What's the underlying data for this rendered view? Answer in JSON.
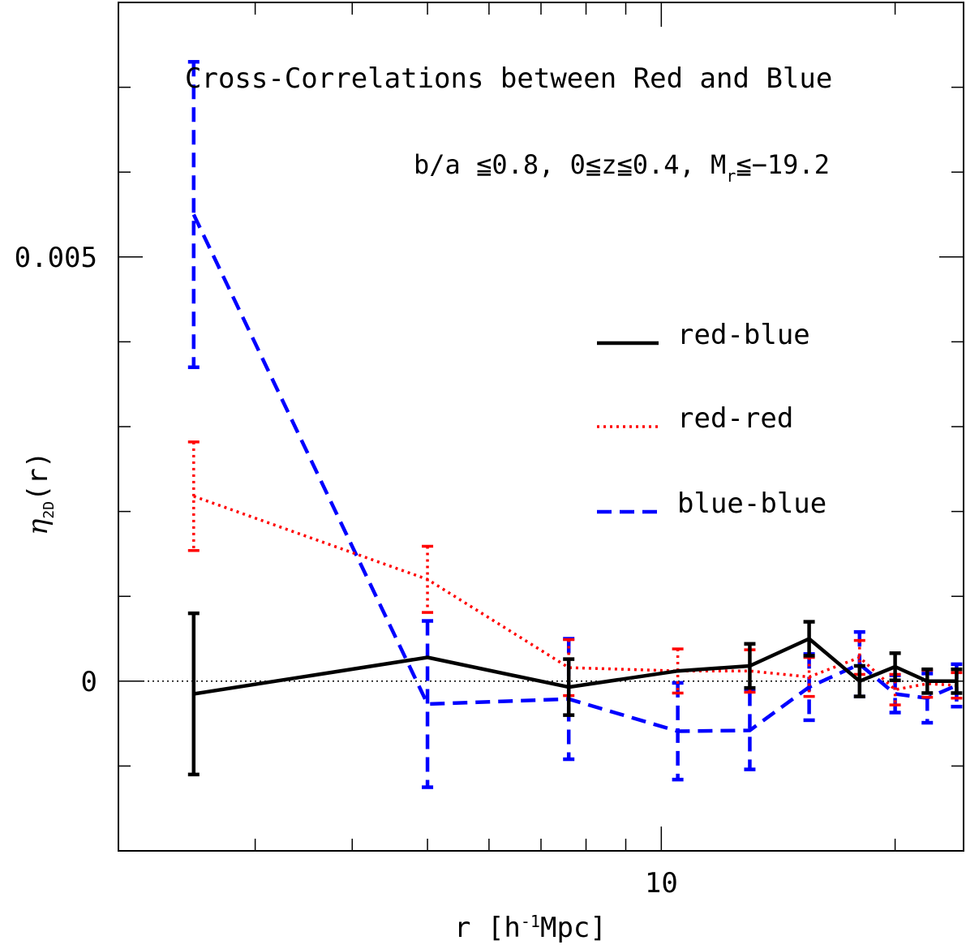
{
  "chart_data": {
    "type": "line",
    "title": "Cross-Correlations between Red and Blue",
    "subtitle": {
      "lead": "b/a ≦0.8, 0≦z≦0.4, M",
      "sub": "r",
      "tail": "≦−19.2"
    },
    "xlabel": {
      "lead": "r [h",
      "sup": "-1",
      "tail": "Mpc]"
    },
    "ylabel": {
      "symbol": "η",
      "sub": "2D",
      "tail": "(r)"
    },
    "x_scale": "log",
    "xlim": [
      2.0,
      24.5
    ],
    "ylim": [
      -0.002,
      0.008
    ],
    "x_tick_labels": [
      {
        "value": 10,
        "label": "10"
      }
    ],
    "y_tick_labels": [
      {
        "value": 0,
        "label": "0"
      },
      {
        "value": 0.005,
        "label": "0.005"
      }
    ],
    "zero_line": true,
    "legend": {
      "placement": "right",
      "entries": [
        {
          "label": "red-blue",
          "series": 0
        },
        {
          "label": "red-red",
          "series": 1
        },
        {
          "label": "blue-blue",
          "series": 2
        }
      ]
    },
    "x": [
      2.5,
      5.0,
      7.6,
      10.5,
      13.0,
      15.5,
      18.0,
      20.0,
      22.0,
      24.0
    ],
    "series": [
      {
        "name": "red-blue",
        "color": "#000000",
        "style": "solid",
        "values": [
          -0.00015,
          0.00028,
          -7e-05,
          0.00012,
          0.00018,
          0.0005,
          0.0,
          0.00017,
          0.0,
          0.0
        ],
        "errors": [
          0.00095,
          0.0,
          0.00033,
          0.0,
          0.00026,
          0.0002,
          0.00018,
          0.00016,
          0.00014,
          0.00014
        ]
      },
      {
        "name": "red-red",
        "color": "#ff0000",
        "style": "dotted",
        "values": [
          0.00218,
          0.0012,
          0.00016,
          0.00012,
          0.00012,
          5e-05,
          0.00028,
          -0.0001,
          -3e-05,
          -5e-05
        ],
        "errors": [
          0.00064,
          0.00039,
          0.00033,
          0.00026,
          0.00025,
          0.00023,
          0.0002,
          0.00018,
          0.00016,
          0.00015
        ]
      },
      {
        "name": "blue-blue",
        "color": "#0000ff",
        "style": "dashed",
        "values": [
          0.0055,
          -0.00027,
          -0.00021,
          -0.00059,
          -0.00058,
          -7e-05,
          0.0002,
          -0.00015,
          -0.0002,
          -5e-05
        ],
        "errors": [
          0.0018,
          0.00098,
          0.00071,
          0.00057,
          0.00046,
          0.00039,
          0.00038,
          0.00022,
          0.00029,
          0.00025
        ]
      }
    ]
  }
}
